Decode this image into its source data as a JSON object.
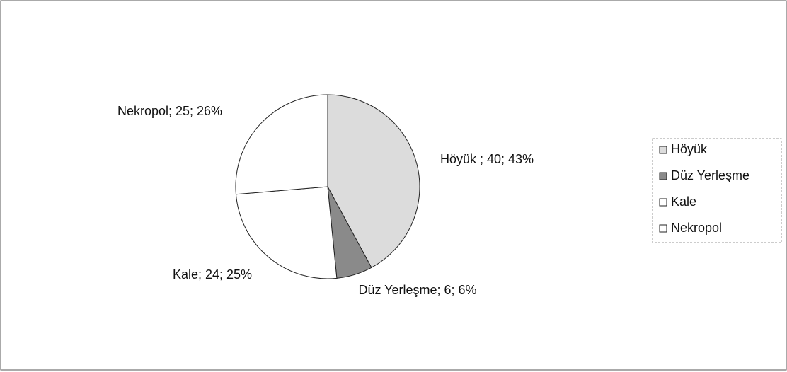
{
  "chart_data": {
    "type": "pie",
    "categories": [
      "Höyük",
      "Düz Yerleşme",
      "Kale",
      "Nekropol"
    ],
    "values": [
      40,
      6,
      24,
      25
    ],
    "value_labels": [
      "Höyük ; 40; 43%",
      "Düz Yerleşme; 6; 6%",
      "Kale; 24; 25%",
      "Nekropol; 25; 26%"
    ],
    "colors": [
      "#dcdcdc",
      "#8a8a8a",
      "#ffffff",
      "#ffffff"
    ],
    "legend": "right"
  }
}
